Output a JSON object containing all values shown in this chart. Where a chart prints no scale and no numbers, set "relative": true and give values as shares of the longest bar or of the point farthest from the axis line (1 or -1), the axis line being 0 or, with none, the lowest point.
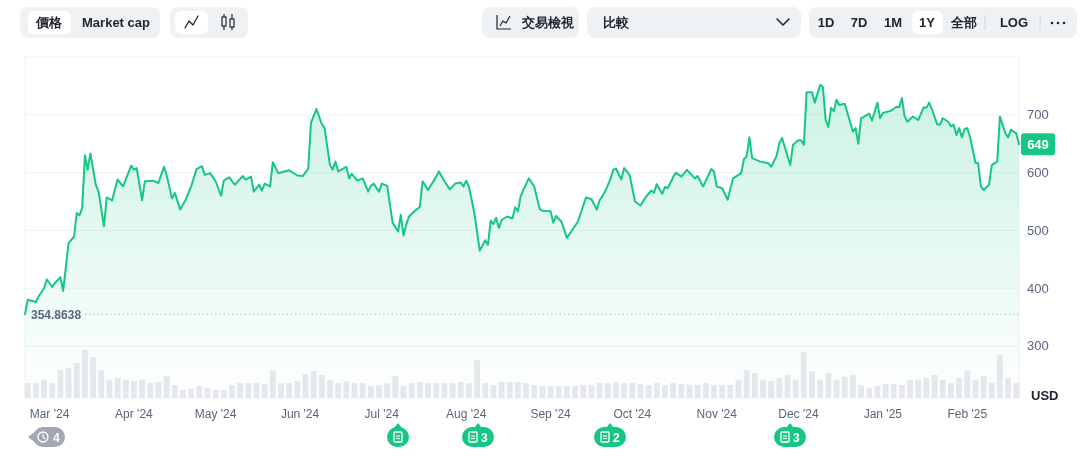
{
  "chart_data": [
    {
      "type": "other",
      "annotations": [
        "價格",
        "Market cap",
        "交易檢視",
        "比較",
        "1D",
        "7D",
        "1M",
        "1Y",
        "全部",
        "LOG"
      ]
    },
    {
      "type": "area",
      "xlim": [
        "2024-02-21",
        "2025-02-20"
      ],
      "ylim": [
        210,
        800
      ],
      "yticks": [
        300,
        400,
        500,
        600,
        700
      ],
      "ylabel": "USD",
      "grid": "y",
      "xticks": [
        {
          "value": "2024-03-01",
          "label": "Mar '24"
        },
        {
          "value": "2024-04-01",
          "label": "Apr '24"
        },
        {
          "value": "2024-05-01",
          "label": "May '24"
        },
        {
          "value": "2024-06-01",
          "label": "Jun '24"
        },
        {
          "value": "2024-07-01",
          "label": "Jul '24"
        },
        {
          "value": "2024-08-01",
          "label": "Aug '24"
        },
        {
          "value": "2024-09-01",
          "label": "Sep '24"
        },
        {
          "value": "2024-10-01",
          "label": "Oct '24"
        },
        {
          "value": "2024-11-01",
          "label": "Nov '24"
        },
        {
          "value": "2024-12-01",
          "label": "Dec '24"
        },
        {
          "value": "2025-01-01",
          "label": "Jan '25"
        },
        {
          "value": "2025-02-01",
          "label": "Feb '25"
        }
      ],
      "ref_lines": [
        {
          "axis": "y",
          "value": 354.8638,
          "label": "354.8638",
          "color": "#a6b0c3",
          "line_style": "dotted"
        }
      ],
      "annotations": [
        {
          "text": "649",
          "x": "2025-02-20",
          "y": 649
        },
        "4",
        "3",
        "2",
        "3"
      ],
      "x": [
        "2024-02-21",
        "2024-02-22",
        "2024-02-25",
        "2024-02-26",
        "2024-02-28",
        "2024-02-29",
        "2024-03-02",
        "2024-03-03",
        "2024-03-05",
        "2024-03-06",
        "2024-03-08",
        "2024-03-10",
        "2024-03-11",
        "2024-03-12",
        "2024-03-13",
        "2024-03-14",
        "2024-03-15",
        "2024-03-16",
        "2024-03-18",
        "2024-03-19",
        "2024-03-21",
        "2024-03-22",
        "2024-03-24",
        "2024-03-26",
        "2024-03-28",
        "2024-03-31",
        "2024-04-01",
        "2024-04-02",
        "2024-04-04",
        "2024-04-05",
        "2024-04-08",
        "2024-04-10",
        "2024-04-12",
        "2024-04-13",
        "2024-04-15",
        "2024-04-16",
        "2024-04-18",
        "2024-04-20",
        "2024-04-22",
        "2024-04-24",
        "2024-04-26",
        "2024-04-27",
        "2024-04-29",
        "2024-05-01",
        "2024-05-03",
        "2024-05-04",
        "2024-05-06",
        "2024-05-08",
        "2024-05-11",
        "2024-05-12",
        "2024-05-14",
        "2024-05-15",
        "2024-05-17",
        "2024-05-18",
        "2024-05-19",
        "2024-05-21",
        "2024-05-22",
        "2024-05-24",
        "2024-05-28",
        "2024-05-31",
        "2024-06-02",
        "2024-06-04",
        "2024-06-05",
        "2024-06-07",
        "2024-06-09",
        "2024-06-10",
        "2024-06-12",
        "2024-06-13",
        "2024-06-14",
        "2024-06-15",
        "2024-06-18",
        "2024-06-19",
        "2024-06-20",
        "2024-06-22",
        "2024-06-24",
        "2024-06-26",
        "2024-06-27",
        "2024-06-28",
        "2024-06-30",
        "2024-07-01",
        "2024-07-03",
        "2024-07-05",
        "2024-07-07",
        "2024-07-08",
        "2024-07-09",
        "2024-07-10",
        "2024-07-11",
        "2024-07-13",
        "2024-07-15",
        "2024-07-16",
        "2024-07-18",
        "2024-07-21",
        "2024-07-22",
        "2024-07-24",
        "2024-07-26",
        "2024-07-28",
        "2024-07-30",
        "2024-07-31",
        "2024-08-01",
        "2024-08-02",
        "2024-08-04",
        "2024-08-06",
        "2024-08-08",
        "2024-08-09",
        "2024-08-10",
        "2024-08-11",
        "2024-08-12",
        "2024-08-13",
        "2024-08-14",
        "2024-08-16",
        "2024-08-18",
        "2024-08-19",
        "2024-08-20",
        "2024-08-21",
        "2024-08-22",
        "2024-08-24",
        "2024-08-26",
        "2024-08-28",
        "2024-08-29",
        "2024-09-01",
        "2024-09-02",
        "2024-09-03",
        "2024-09-05",
        "2024-09-07",
        "2024-09-09",
        "2024-09-11",
        "2024-09-14",
        "2024-09-16",
        "2024-09-18",
        "2024-09-19",
        "2024-09-21",
        "2024-09-23",
        "2024-09-24",
        "2024-09-25",
        "2024-09-27",
        "2024-09-28",
        "2024-09-30",
        "2024-10-02",
        "2024-10-04",
        "2024-10-06",
        "2024-10-08",
        "2024-10-09",
        "2024-10-10",
        "2024-10-12",
        "2024-10-13",
        "2024-10-14",
        "2024-10-16",
        "2024-10-17",
        "2024-10-19",
        "2024-10-20",
        "2024-10-21",
        "2024-10-24",
        "2024-10-25",
        "2024-10-27",
        "2024-10-30",
        "2024-10-31",
        "2024-11-01",
        "2024-11-03",
        "2024-11-05",
        "2024-11-07",
        "2024-11-10",
        "2024-11-11",
        "2024-11-12",
        "2024-11-13",
        "2024-11-14",
        "2024-11-17",
        "2024-11-20",
        "2024-11-21",
        "2024-11-23",
        "2024-11-24",
        "2024-11-25",
        "2024-11-28",
        "2024-11-29",
        "2024-12-01",
        "2024-12-02",
        "2024-12-03",
        "2024-12-04",
        "2024-12-06",
        "2024-12-07",
        "2024-12-09",
        "2024-12-10",
        "2024-12-11",
        "2024-12-12",
        "2024-12-13",
        "2024-12-14",
        "2024-12-15",
        "2024-12-16",
        "2024-12-18",
        "2024-12-21",
        "2024-12-22",
        "2024-12-23",
        "2024-12-24",
        "2024-12-27",
        "2024-12-28",
        "2024-12-30",
        "2024-12-31",
        "2025-01-01",
        "2025-01-04",
        "2025-01-06",
        "2025-01-07",
        "2025-01-08",
        "2025-01-09",
        "2025-01-10",
        "2025-01-12",
        "2025-01-14",
        "2025-01-16",
        "2025-01-17",
        "2025-01-18",
        "2025-01-19",
        "2025-01-21",
        "2025-01-22",
        "2025-01-23",
        "2025-01-25",
        "2025-01-26",
        "2025-01-27",
        "2025-01-28",
        "2025-01-29",
        "2025-01-30",
        "2025-01-31",
        "2025-02-01",
        "2025-02-02",
        "2025-02-03",
        "2025-02-04",
        "2025-02-05",
        "2025-02-06",
        "2025-02-07",
        "2025-02-09",
        "2025-02-10",
        "2025-02-12",
        "2025-02-13",
        "2025-02-15",
        "2025-02-16",
        "2025-02-17",
        "2025-02-19",
        "2025-02-20"
      ],
      "series": [
        {
          "color": "#16c784",
          "values": [
            355,
            380,
            376,
            386,
            400,
            415,
            402,
            409,
            419,
            395,
            478,
            489,
            530,
            526,
            539,
            630,
            605,
            633,
            579,
            567,
            507,
            557,
            552,
            588,
            576,
            612,
            605,
            608,
            552,
            585,
            586,
            582,
            610,
            596,
            555,
            565,
            536,
            553,
            576,
            606,
            611,
            596,
            599,
            585,
            560,
            586,
            592,
            579,
            594,
            588,
            593,
            567,
            579,
            569,
            581,
            576,
            618,
            599,
            604,
            595,
            594,
            607,
            686,
            710,
            684,
            677,
            613,
            605,
            619,
            602,
            610,
            590,
            598,
            586,
            590,
            567,
            577,
            581,
            567,
            581,
            577,
            513,
            498,
            527,
            491,
            510,
            524,
            533,
            541,
            585,
            570,
            593,
            602,
            585,
            571,
            581,
            583,
            576,
            586,
            576,
            530,
            465,
            483,
            475,
            517,
            511,
            522,
            504,
            518,
            524,
            521,
            540,
            533,
            559,
            570,
            590,
            576,
            537,
            534,
            533,
            513,
            525,
            515,
            487,
            501,
            515,
            557,
            554,
            536,
            552,
            567,
            589,
            605,
            607,
            588,
            608,
            596,
            550,
            543,
            558,
            569,
            565,
            580,
            563,
            575,
            573,
            592,
            600,
            593,
            598,
            605,
            590,
            594,
            576,
            606,
            602,
            576,
            573,
            553,
            590,
            599,
            623,
            628,
            661,
            625,
            619,
            616,
            610,
            629,
            651,
            660,
            613,
            648,
            656,
            656,
            648,
            739,
            739,
            721,
            752,
            748,
            691,
            679,
            712,
            706,
            726,
            717,
            719,
            671,
            677,
            650,
            694,
            702,
            690,
            721,
            694,
            703,
            707,
            714,
            713,
            729,
            698,
            688,
            697,
            691,
            713,
            712,
            721,
            710,
            683,
            683,
            694,
            688,
            680,
            683,
            665,
            677,
            661,
            675,
            677,
            662,
            640,
            617,
            616,
            576,
            570,
            579,
            613,
            619,
            697,
            668,
            661,
            674,
            668,
            649
          ]
        }
      ]
    },
    {
      "type": "bar",
      "relative": true,
      "xlim": [
        "2024-02-21",
        "2025-02-20"
      ],
      "color": "#e4e7ec",
      "x": [
        "2024-02-22",
        "2024-02-25",
        "2024-02-28",
        "2024-03-02",
        "2024-03-05",
        "2024-03-08",
        "2024-03-11",
        "2024-03-14",
        "2024-03-17",
        "2024-03-20",
        "2024-03-23",
        "2024-03-26",
        "2024-03-29",
        "2024-04-01",
        "2024-04-04",
        "2024-04-07",
        "2024-04-10",
        "2024-04-13",
        "2024-04-16",
        "2024-04-19",
        "2024-04-22",
        "2024-04-25",
        "2024-04-28",
        "2024-05-01",
        "2024-05-04",
        "2024-05-07",
        "2024-05-10",
        "2024-05-13",
        "2024-05-16",
        "2024-05-19",
        "2024-05-22",
        "2024-05-25",
        "2024-05-28",
        "2024-05-31",
        "2024-06-03",
        "2024-06-06",
        "2024-06-09",
        "2024-06-12",
        "2024-06-15",
        "2024-06-18",
        "2024-06-21",
        "2024-06-24",
        "2024-06-27",
        "2024-06-30",
        "2024-07-03",
        "2024-07-06",
        "2024-07-09",
        "2024-07-12",
        "2024-07-15",
        "2024-07-18",
        "2024-07-21",
        "2024-07-24",
        "2024-07-27",
        "2024-07-30",
        "2024-08-02",
        "2024-08-05",
        "2024-08-08",
        "2024-08-11",
        "2024-08-14",
        "2024-08-17",
        "2024-08-20",
        "2024-08-23",
        "2024-08-26",
        "2024-08-29",
        "2024-09-01",
        "2024-09-04",
        "2024-09-07",
        "2024-09-10",
        "2024-09-13",
        "2024-09-16",
        "2024-09-19",
        "2024-09-22",
        "2024-09-25",
        "2024-09-28",
        "2024-10-01",
        "2024-10-04",
        "2024-10-07",
        "2024-10-10",
        "2024-10-13",
        "2024-10-16",
        "2024-10-19",
        "2024-10-22",
        "2024-10-25",
        "2024-10-28",
        "2024-10-31",
        "2024-11-03",
        "2024-11-06",
        "2024-11-09",
        "2024-11-12",
        "2024-11-15",
        "2024-11-18",
        "2024-11-21",
        "2024-11-24",
        "2024-11-27",
        "2024-11-30",
        "2024-12-03",
        "2024-12-06",
        "2024-12-09",
        "2024-12-12",
        "2024-12-15",
        "2024-12-18",
        "2024-12-21",
        "2024-12-24",
        "2024-12-27",
        "2024-12-30",
        "2025-01-02",
        "2025-01-05",
        "2025-01-08",
        "2025-01-11",
        "2025-01-14",
        "2025-01-17",
        "2025-01-20",
        "2025-01-23",
        "2025-01-26",
        "2025-01-29",
        "2025-02-01",
        "2025-02-04",
        "2025-02-07",
        "2025-02-10",
        "2025-02-13",
        "2025-02-16",
        "2025-02-19"
      ],
      "values": [
        0.31,
        0.31,
        0.38,
        0.31,
        0.58,
        0.63,
        0.73,
        1,
        0.85,
        0.58,
        0.38,
        0.42,
        0.38,
        0.35,
        0.38,
        0.31,
        0.33,
        0.46,
        0.27,
        0.17,
        0.19,
        0.25,
        0.21,
        0.17,
        0.17,
        0.27,
        0.31,
        0.31,
        0.31,
        0.29,
        0.58,
        0.31,
        0.31,
        0.35,
        0.5,
        0.56,
        0.48,
        0.38,
        0.31,
        0.35,
        0.31,
        0.31,
        0.25,
        0.27,
        0.31,
        0.46,
        0.25,
        0.31,
        0.33,
        0.31,
        0.31,
        0.31,
        0.31,
        0.33,
        0.31,
        0.79,
        0.31,
        0.27,
        0.33,
        0.33,
        0.33,
        0.31,
        0.27,
        0.25,
        0.25,
        0.25,
        0.25,
        0.25,
        0.27,
        0.27,
        0.31,
        0.31,
        0.33,
        0.31,
        0.31,
        0.29,
        0.27,
        0.31,
        0.27,
        0.31,
        0.29,
        0.27,
        0.27,
        0.31,
        0.27,
        0.27,
        0.27,
        0.38,
        0.58,
        0.52,
        0.38,
        0.35,
        0.42,
        0.48,
        0.38,
        0.96,
        0.56,
        0.38,
        0.52,
        0.38,
        0.44,
        0.48,
        0.27,
        0.21,
        0.25,
        0.29,
        0.29,
        0.27,
        0.38,
        0.38,
        0.42,
        0.48,
        0.38,
        0.31,
        0.42,
        0.58,
        0.38,
        0.46,
        0.31,
        0.9,
        0.42,
        0.31
      ]
    }
  ]
}
